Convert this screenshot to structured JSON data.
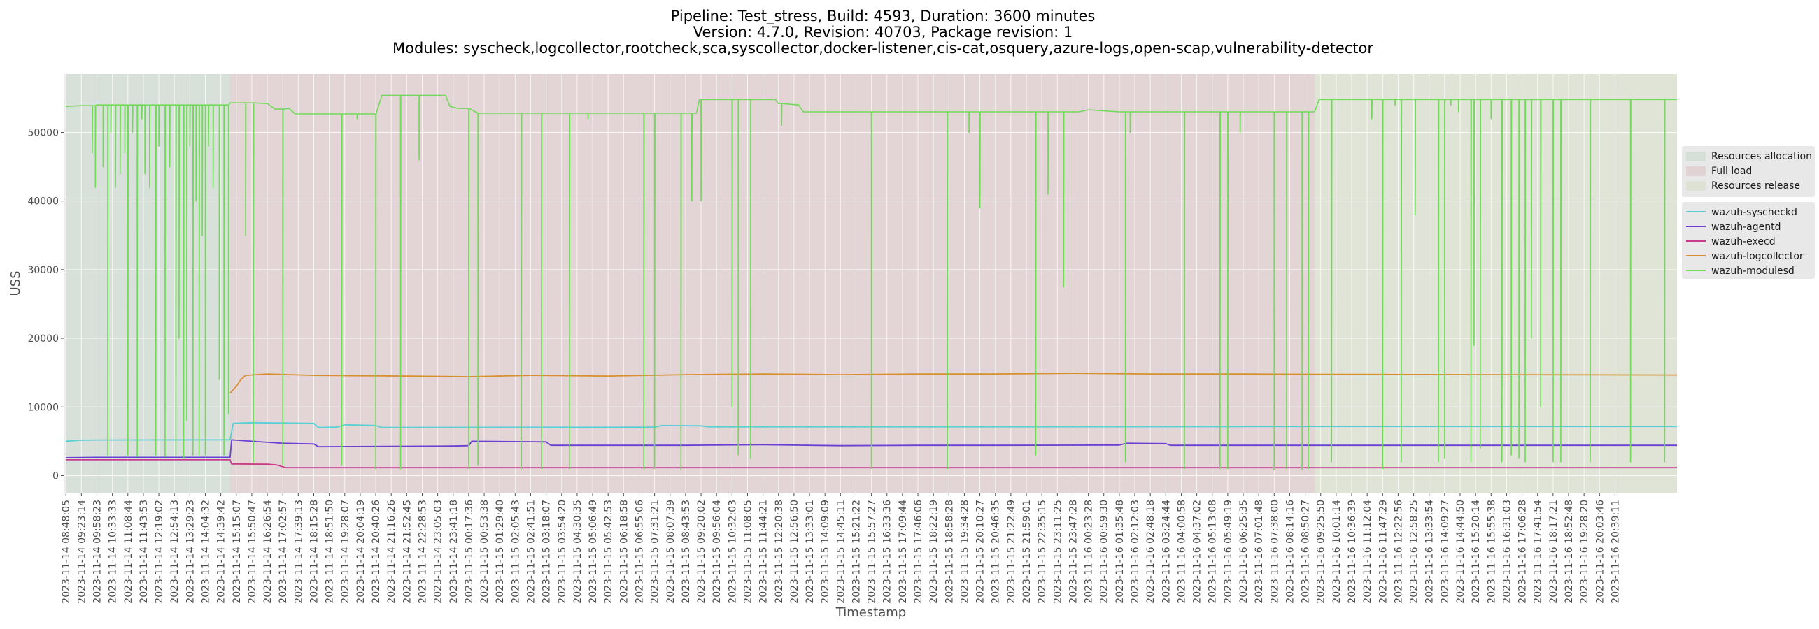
{
  "chart_data": {
    "type": "line",
    "title_lines": [
      "Pipeline: Test_stress, Build: 4593, Duration: 3600 minutes",
      "Version: 4.7.0, Revision: 40703, Package revision: 1",
      "Modules: syscheck,logcollector,rootcheck,sca,syscollector,docker-listener,cis-cat,osquery,azure-logs,open-scap,vulnerability-detector"
    ],
    "xlabel": "Timestamp",
    "ylabel": "USS",
    "ylim": [
      -2500,
      58500
    ],
    "yticks": [
      0,
      10000,
      20000,
      30000,
      40000,
      50000
    ],
    "grid": true,
    "x_categories": [
      "2023-11-14 08:48:05",
      "2023-11-14 09:23:14",
      "2023-11-14 09:58:23",
      "2023-11-14 10:33:33",
      "2023-11-14 11:08:44",
      "2023-11-14 11:43:53",
      "2023-11-14 12:19:02",
      "2023-11-14 12:54:13",
      "2023-11-14 13:29:23",
      "2023-11-14 14:04:32",
      "2023-11-14 14:39:42",
      "2023-11-14 15:15:07",
      "2023-11-14 15:50:47",
      "2023-11-14 16:26:54",
      "2023-11-14 17:02:57",
      "2023-11-14 17:39:13",
      "2023-11-14 18:15:28",
      "2023-11-14 18:51:50",
      "2023-11-14 19:28:07",
      "2023-11-14 20:04:19",
      "2023-11-14 20:40:26",
      "2023-11-14 21:16:26",
      "2023-11-14 21:52:45",
      "2023-11-14 22:28:53",
      "2023-11-14 23:05:03",
      "2023-11-14 23:41:18",
      "2023-11-15 00:17:36",
      "2023-11-15 00:53:38",
      "2023-11-15 01:29:40",
      "2023-11-15 02:05:43",
      "2023-11-15 02:41:51",
      "2023-11-15 03:18:07",
      "2023-11-15 03:54:20",
      "2023-11-15 04:30:35",
      "2023-11-15 05:06:49",
      "2023-11-15 05:42:53",
      "2023-11-15 06:18:58",
      "2023-11-15 06:55:06",
      "2023-11-15 07:31:21",
      "2023-11-15 08:07:39",
      "2023-11-15 08:43:53",
      "2023-11-15 09:20:02",
      "2023-11-15 09:56:04",
      "2023-11-15 10:32:03",
      "2023-11-15 11:08:05",
      "2023-11-15 11:44:21",
      "2023-11-15 12:20:38",
      "2023-11-15 12:56:50",
      "2023-11-15 13:33:01",
      "2023-11-15 14:09:09",
      "2023-11-15 14:45:11",
      "2023-11-15 15:21:22",
      "2023-11-15 15:57:27",
      "2023-11-15 16:33:36",
      "2023-11-15 17:09:44",
      "2023-11-15 17:46:06",
      "2023-11-15 18:22:19",
      "2023-11-15 18:58:28",
      "2023-11-15 19:34:28",
      "2023-11-15 20:10:27",
      "2023-11-15 20:46:35",
      "2023-11-15 21:22:49",
      "2023-11-15 21:59:01",
      "2023-11-15 22:35:15",
      "2023-11-15 23:11:25",
      "2023-11-15 23:47:28",
      "2023-11-16 00:23:28",
      "2023-11-16 00:59:30",
      "2023-11-16 01:35:48",
      "2023-11-16 02:12:03",
      "2023-11-16 02:48:18",
      "2023-11-16 03:24:44",
      "2023-11-16 04:00:58",
      "2023-11-16 04:37:02",
      "2023-11-16 05:13:08",
      "2023-11-16 05:49:19",
      "2023-11-16 06:25:35",
      "2023-11-16 07:01:48",
      "2023-11-16 07:38:00",
      "2023-11-16 08:14:16",
      "2023-11-16 08:50:27",
      "2023-11-16 09:25:50",
      "2023-11-16 10:01:14",
      "2023-11-16 10:36:39",
      "2023-11-16 11:12:04",
      "2023-11-16 11:47:29",
      "2023-11-16 12:22:56",
      "2023-11-16 12:58:25",
      "2023-11-16 13:33:54",
      "2023-11-16 14:09:27",
      "2023-11-16 14:44:50",
      "2023-11-16 15:20:14",
      "2023-11-16 15:55:38",
      "2023-11-16 16:31:03",
      "2023-11-16 17:06:28",
      "2023-11-16 17:41:54",
      "2023-11-16 18:17:21",
      "2023-11-16 18:52:48",
      "2023-11-16 19:28:20",
      "2023-11-16 20:03:46",
      "2023-11-16 20:39:11"
    ],
    "phases": [
      {
        "name": "Resources allocation",
        "start": 0,
        "end": 10.6,
        "color": "#a9c9ad"
      },
      {
        "name": "Full load",
        "start": 10.6,
        "end": 80.6,
        "color": "#d29aa1"
      },
      {
        "name": "Resources release",
        "start": 80.6,
        "end": 104,
        "color": "#c6d4a2"
      }
    ],
    "x_range": [
      -0.1,
      104
    ],
    "series": [
      {
        "name": "wazuh-syscheckd",
        "color": "#57cfd6",
        "points": [
          [
            0,
            5000
          ],
          [
            1,
            5150
          ],
          [
            2,
            5180
          ],
          [
            5,
            5190
          ],
          [
            10.6,
            5200
          ],
          [
            10.8,
            7600
          ],
          [
            12,
            7700
          ],
          [
            16,
            7600
          ],
          [
            16.3,
            7000
          ],
          [
            17.5,
            7050
          ],
          [
            18,
            7400
          ],
          [
            20,
            7300
          ],
          [
            20.4,
            7000
          ],
          [
            38,
            7050
          ],
          [
            38.5,
            7300
          ],
          [
            41,
            7250
          ],
          [
            41.5,
            7100
          ],
          [
            60,
            7100
          ],
          [
            80.6,
            7150
          ],
          [
            104,
            7150
          ]
        ]
      },
      {
        "name": "wazuh-agentd",
        "color": "#6a3fd2",
        "points": [
          [
            0,
            2600
          ],
          [
            2,
            2650
          ],
          [
            10.6,
            2650
          ],
          [
            10.7,
            5200
          ],
          [
            12,
            5000
          ],
          [
            14,
            4700
          ],
          [
            16,
            4600
          ],
          [
            16.3,
            4200
          ],
          [
            25,
            4300
          ],
          [
            26,
            4350
          ],
          [
            26.2,
            5000
          ],
          [
            31,
            4900
          ],
          [
            31.3,
            4400
          ],
          [
            40,
            4400
          ],
          [
            45,
            4500
          ],
          [
            50,
            4350
          ],
          [
            55,
            4400
          ],
          [
            60,
            4400
          ],
          [
            68,
            4450
          ],
          [
            68.5,
            4700
          ],
          [
            71,
            4650
          ],
          [
            71.3,
            4400
          ],
          [
            80.6,
            4400
          ],
          [
            104,
            4400
          ]
        ]
      },
      {
        "name": "wazuh-execd",
        "color": "#c83c8c",
        "points": [
          [
            0,
            2300
          ],
          [
            10.6,
            2300
          ],
          [
            10.7,
            1700
          ],
          [
            13,
            1650
          ],
          [
            13.6,
            1550
          ],
          [
            14.2,
            1150
          ],
          [
            104,
            1150
          ]
        ]
      },
      {
        "name": "wazuh-logcollector",
        "color": "#d8902e",
        "points": [
          [
            10.6,
            12000
          ],
          [
            10.8,
            12500
          ],
          [
            11,
            13000
          ],
          [
            11.3,
            14000
          ],
          [
            11.6,
            14600
          ],
          [
            13,
            14800
          ],
          [
            16,
            14600
          ],
          [
            22,
            14500
          ],
          [
            26,
            14400
          ],
          [
            30,
            14600
          ],
          [
            35,
            14500
          ],
          [
            40,
            14700
          ],
          [
            45,
            14800
          ],
          [
            50,
            14700
          ],
          [
            55,
            14800
          ],
          [
            60,
            14800
          ],
          [
            65,
            14900
          ],
          [
            70,
            14800
          ],
          [
            75,
            14800
          ],
          [
            80.6,
            14750
          ],
          [
            104,
            14650
          ]
        ]
      },
      {
        "name": "wazuh-modulesd",
        "color": "#72d95a",
        "points": [
          [
            0,
            53800
          ],
          [
            1,
            53900
          ],
          [
            2,
            54000
          ],
          [
            10.6,
            54300
          ],
          [
            13,
            54200
          ],
          [
            13.5,
            53400
          ],
          [
            14.4,
            53500
          ],
          [
            14.8,
            52700
          ],
          [
            20,
            52700
          ],
          [
            20.4,
            55400
          ],
          [
            24.5,
            55400
          ],
          [
            24.8,
            53800
          ],
          [
            25.3,
            53500
          ],
          [
            26.6,
            52800
          ],
          [
            40.7,
            52800
          ],
          [
            40.9,
            54800
          ],
          [
            45.8,
            54800
          ],
          [
            46,
            54200
          ],
          [
            47.3,
            54000
          ],
          [
            47.6,
            53000
          ],
          [
            65.4,
            53000
          ],
          [
            66,
            53300
          ],
          [
            68,
            53000
          ],
          [
            80.6,
            53000
          ],
          [
            80.9,
            54800
          ],
          [
            104,
            54800
          ]
        ]
      }
    ],
    "dips_modulesd": [
      [
        1.7,
        47000
      ],
      [
        1.9,
        42000
      ],
      [
        2.4,
        45000
      ],
      [
        2.7,
        3000
      ],
      [
        2.9,
        50000
      ],
      [
        3.2,
        42000
      ],
      [
        3.5,
        44000
      ],
      [
        3.8,
        47000
      ],
      [
        4.0,
        3000
      ],
      [
        4.3,
        50000
      ],
      [
        4.6,
        2800
      ],
      [
        4.9,
        52000
      ],
      [
        5.1,
        44000
      ],
      [
        5.4,
        42000
      ],
      [
        5.8,
        3000
      ],
      [
        6.0,
        48000
      ],
      [
        6.4,
        2800
      ],
      [
        6.7,
        45000
      ],
      [
        7.1,
        3000
      ],
      [
        7.3,
        20000
      ],
      [
        7.6,
        2500
      ],
      [
        7.8,
        8000
      ],
      [
        8.0,
        48000
      ],
      [
        8.2,
        3000
      ],
      [
        8.4,
        40000
      ],
      [
        8.6,
        3000
      ],
      [
        8.8,
        35000
      ],
      [
        9.0,
        3000
      ],
      [
        9.2,
        48000
      ],
      [
        9.5,
        42000
      ],
      [
        9.9,
        14000
      ],
      [
        10.2,
        3000
      ],
      [
        10.5,
        9000
      ],
      [
        11.6,
        35000
      ],
      [
        12.1,
        2000
      ],
      [
        14.0,
        1500
      ],
      [
        17.8,
        1500
      ],
      [
        18.8,
        52000
      ],
      [
        20.0,
        1000
      ],
      [
        21.6,
        1000
      ],
      [
        22.8,
        46000
      ],
      [
        26.0,
        1000
      ],
      [
        26.6,
        1500
      ],
      [
        29.4,
        1000
      ],
      [
        30.7,
        1000
      ],
      [
        32.5,
        1000
      ],
      [
        33.7,
        52000
      ],
      [
        37.3,
        1000
      ],
      [
        38.0,
        1000
      ],
      [
        39.7,
        900
      ],
      [
        40.4,
        40000
      ],
      [
        41.0,
        40000
      ],
      [
        43.0,
        10000
      ],
      [
        43.4,
        3000
      ],
      [
        44.2,
        2500
      ],
      [
        46.2,
        51000
      ],
      [
        52.0,
        1000
      ],
      [
        53.7,
        53000
      ],
      [
        56.9,
        1000
      ],
      [
        58.3,
        50000
      ],
      [
        59.0,
        39000
      ],
      [
        62.6,
        3000
      ],
      [
        63.4,
        41000
      ],
      [
        64.4,
        27500
      ],
      [
        68.4,
        2000
      ],
      [
        68.7,
        50000
      ],
      [
        72.2,
        1000
      ],
      [
        74.5,
        1000
      ],
      [
        75.0,
        1000
      ],
      [
        75.8,
        50000
      ],
      [
        78.0,
        900
      ],
      [
        78.8,
        1000
      ],
      [
        79.8,
        900
      ],
      [
        80.2,
        1000
      ],
      [
        81.7,
        2000
      ],
      [
        84.3,
        52000
      ],
      [
        85.0,
        1000
      ],
      [
        85.8,
        54000
      ],
      [
        86.2,
        2000
      ],
      [
        87.1,
        38000
      ],
      [
        88.6,
        2000
      ],
      [
        89.0,
        2500
      ],
      [
        89.4,
        54000
      ],
      [
        89.9,
        53000
      ],
      [
        90.7,
        2000
      ],
      [
        90.9,
        19000
      ],
      [
        91.3,
        4000
      ],
      [
        92.0,
        52000
      ],
      [
        92.7,
        2000
      ],
      [
        93.3,
        3000
      ],
      [
        93.8,
        2500
      ],
      [
        94.2,
        2000
      ],
      [
        94.6,
        20000
      ],
      [
        95.2,
        10000
      ],
      [
        96.0,
        2000
      ],
      [
        96.5,
        2000
      ],
      [
        98.4,
        2000
      ],
      [
        101.0,
        2000
      ],
      [
        103.2,
        2000
      ]
    ]
  }
}
